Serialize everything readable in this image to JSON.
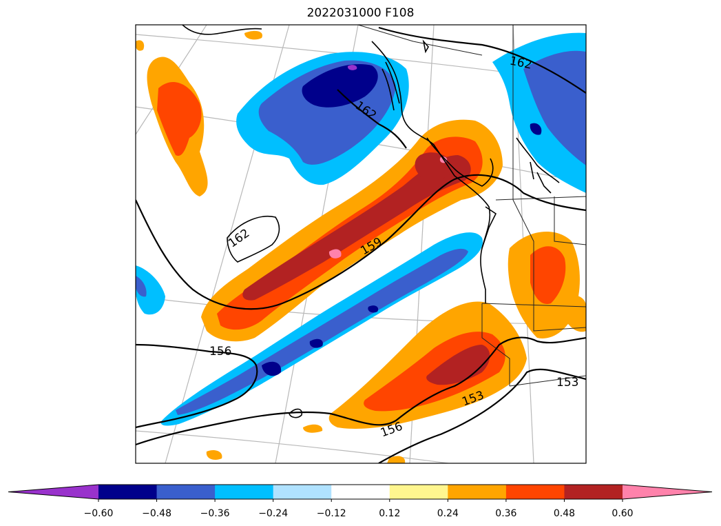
{
  "title": "2022031000 F108",
  "colorbar": {
    "colors": [
      "#9932cc",
      "#00008b",
      "#3a5fcd",
      "#00bfff",
      "#b0e2ff",
      "#ffffff",
      "#fff68f",
      "#ffa500",
      "#ff4500",
      "#b22222",
      "#ff82ab"
    ],
    "levels": [
      -0.6,
      -0.48,
      -0.36,
      -0.24,
      -0.12,
      0.12,
      0.24,
      0.36,
      0.48,
      0.6
    ],
    "tick_labels": [
      "−0.60",
      "−0.48",
      "−0.36",
      "−0.24",
      "−0.12",
      "0.12",
      "0.24",
      "0.36",
      "0.48",
      "0.60"
    ],
    "extend": "both"
  },
  "contour_labels": [
    "162",
    "162",
    "162",
    "159",
    "156",
    "156",
    "153",
    "153"
  ]
}
